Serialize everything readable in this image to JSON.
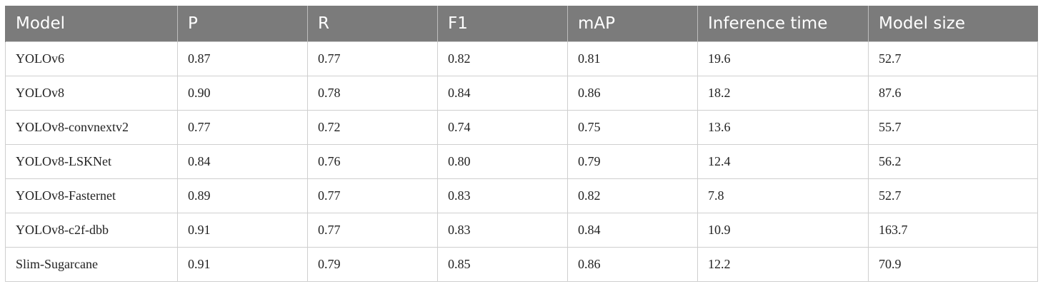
{
  "table": {
    "columns": [
      "Model",
      "P",
      "R",
      "F1",
      "mAP",
      "Inference time",
      "Model size"
    ],
    "rows": [
      [
        "YOLOv6",
        "0.87",
        "0.77",
        "0.82",
        "0.81",
        "19.6",
        "52.7"
      ],
      [
        "YOLOv8",
        "0.90",
        "0.78",
        "0.84",
        "0.86",
        "18.2",
        "87.6"
      ],
      [
        "YOLOv8-convnextv2",
        "0.77",
        "0.72",
        "0.74",
        "0.75",
        "13.6",
        "55.7"
      ],
      [
        "YOLOv8-LSKNet",
        "0.84",
        "0.76",
        "0.80",
        "0.79",
        "12.4",
        "56.2"
      ],
      [
        "YOLOv8-Fasternet",
        "0.89",
        "0.77",
        "0.83",
        "0.82",
        "7.8",
        "52.7"
      ],
      [
        "YOLOv8-c2f-dbb",
        "0.91",
        "0.77",
        "0.83",
        "0.84",
        "10.9",
        "163.7"
      ],
      [
        "Slim-Sugarcane",
        "0.91",
        "0.79",
        "0.85",
        "0.86",
        "12.2",
        "70.9"
      ]
    ]
  },
  "colors": {
    "header_background": "#7b7b7b",
    "header_text": "#ffffff",
    "grid_lines": "#cfcfcf"
  }
}
